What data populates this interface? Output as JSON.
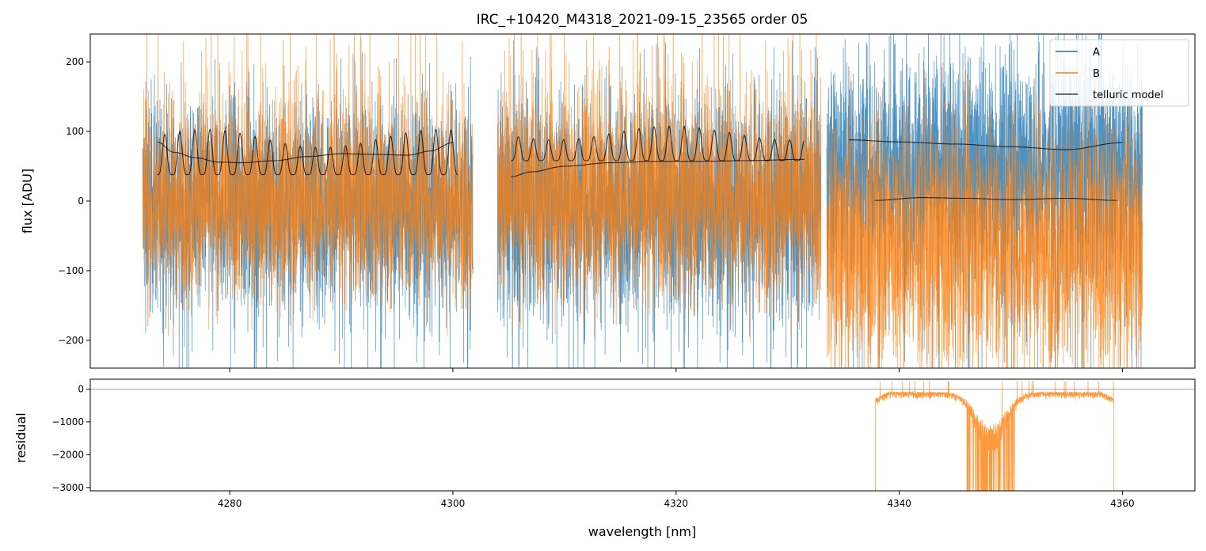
{
  "chart_data": {
    "type": "line",
    "title": "IRC_+10420_M4318_2021-09-15_23565  order 05",
    "xlabel": "wavelength [nm]",
    "xlim": [
      4267.5,
      4366.5
    ],
    "xticks": [
      4280,
      4300,
      4320,
      4340,
      4360
    ],
    "xtick_labels": [
      "4280",
      "4300",
      "4320",
      "4340",
      "4360"
    ],
    "colors": {
      "A": "#1f77b4",
      "B": "#ff7f0e",
      "telluric": "#000000",
      "zero": "#999999"
    },
    "top_panel": {
      "ylabel": "flux [ADU]",
      "ylim": [
        -240,
        240
      ],
      "yticks": [
        -200,
        -100,
        0,
        100,
        200
      ],
      "ytick_labels": [
        "−200",
        "−100",
        "0",
        "100",
        "200"
      ],
      "legend": {
        "placement": "top-right",
        "entries": [
          "A",
          "B",
          "telluric model"
        ]
      },
      "segments": [
        {
          "x_range": [
            4272.2,
            4301.8
          ],
          "A": {
            "center": 0,
            "noise": 75,
            "spike_depth": -240
          },
          "B": {
            "center": 0,
            "noise": 70,
            "spike_depth": 240
          },
          "telluric_A": {
            "x": [
              4273.5,
              4275,
              4277,
              4279,
              4281,
              4284,
              4287,
              4290,
              4293,
              4296,
              4298,
              4300
            ],
            "y": [
              85,
              70,
              62,
              56,
              55,
              58,
              64,
              68,
              67,
              66,
              72,
              84
            ]
          },
          "telluric_B": {
            "x_range": [
              4273.5,
              4300.5
            ],
            "baseline": 38,
            "amplitude": 65,
            "period_nm": 1.35
          }
        },
        {
          "x_range": [
            4304,
            4333
          ],
          "A": {
            "center": 0,
            "noise": 80,
            "spike_depth": -240
          },
          "B": {
            "center": 5,
            "noise": 75,
            "spike_depth": 240
          },
          "telluric_A": {
            "x": [
              4305.2,
              4307,
              4310,
              4314,
              4318,
              4322,
              4326,
              4331.5
            ],
            "y": [
              35,
              42,
              50,
              55,
              57,
              57,
              58,
              60
            ]
          },
          "telluric_B": {
            "x_range": [
              4305.2,
              4331.5
            ],
            "baseline": 58,
            "amplitude": 50,
            "period_nm": 1.35
          }
        },
        {
          "x_range": [
            4333.5,
            4361.8
          ],
          "A": {
            "center": 50,
            "noise": 85,
            "spike_depth": -240
          },
          "B": {
            "center": -60,
            "noise": 90,
            "spike_depth": -240
          },
          "telluric_A": {
            "x": [
              4335.5,
              4340,
              4345,
              4350,
              4355,
              4360
            ],
            "y": [
              88,
              85,
              82,
              78,
              74,
              84
            ]
          },
          "telluric_B": {
            "x": [
              4337.8,
              4342,
              4346,
              4350,
              4355,
              4359.5
            ],
            "y": [
              1,
              5,
              4,
              2,
              4,
              1
            ]
          }
        }
      ]
    },
    "bottom_panel": {
      "ylabel": "residual",
      "ylim": [
        -3100,
        300
      ],
      "yticks": [
        -3000,
        -2000,
        -1000,
        0
      ],
      "ytick_labels": [
        "−3000",
        "−2000",
        "−1000",
        "0"
      ],
      "zero_line": 0,
      "residual_B": {
        "x_range": [
          4337.8,
          4359.3
        ],
        "baseline": 0,
        "edge_drop": -3100,
        "dip_center": 4348.2,
        "dip_width": 1.8,
        "dip_depth": -1600,
        "deep_spikes": -3100
      }
    }
  }
}
